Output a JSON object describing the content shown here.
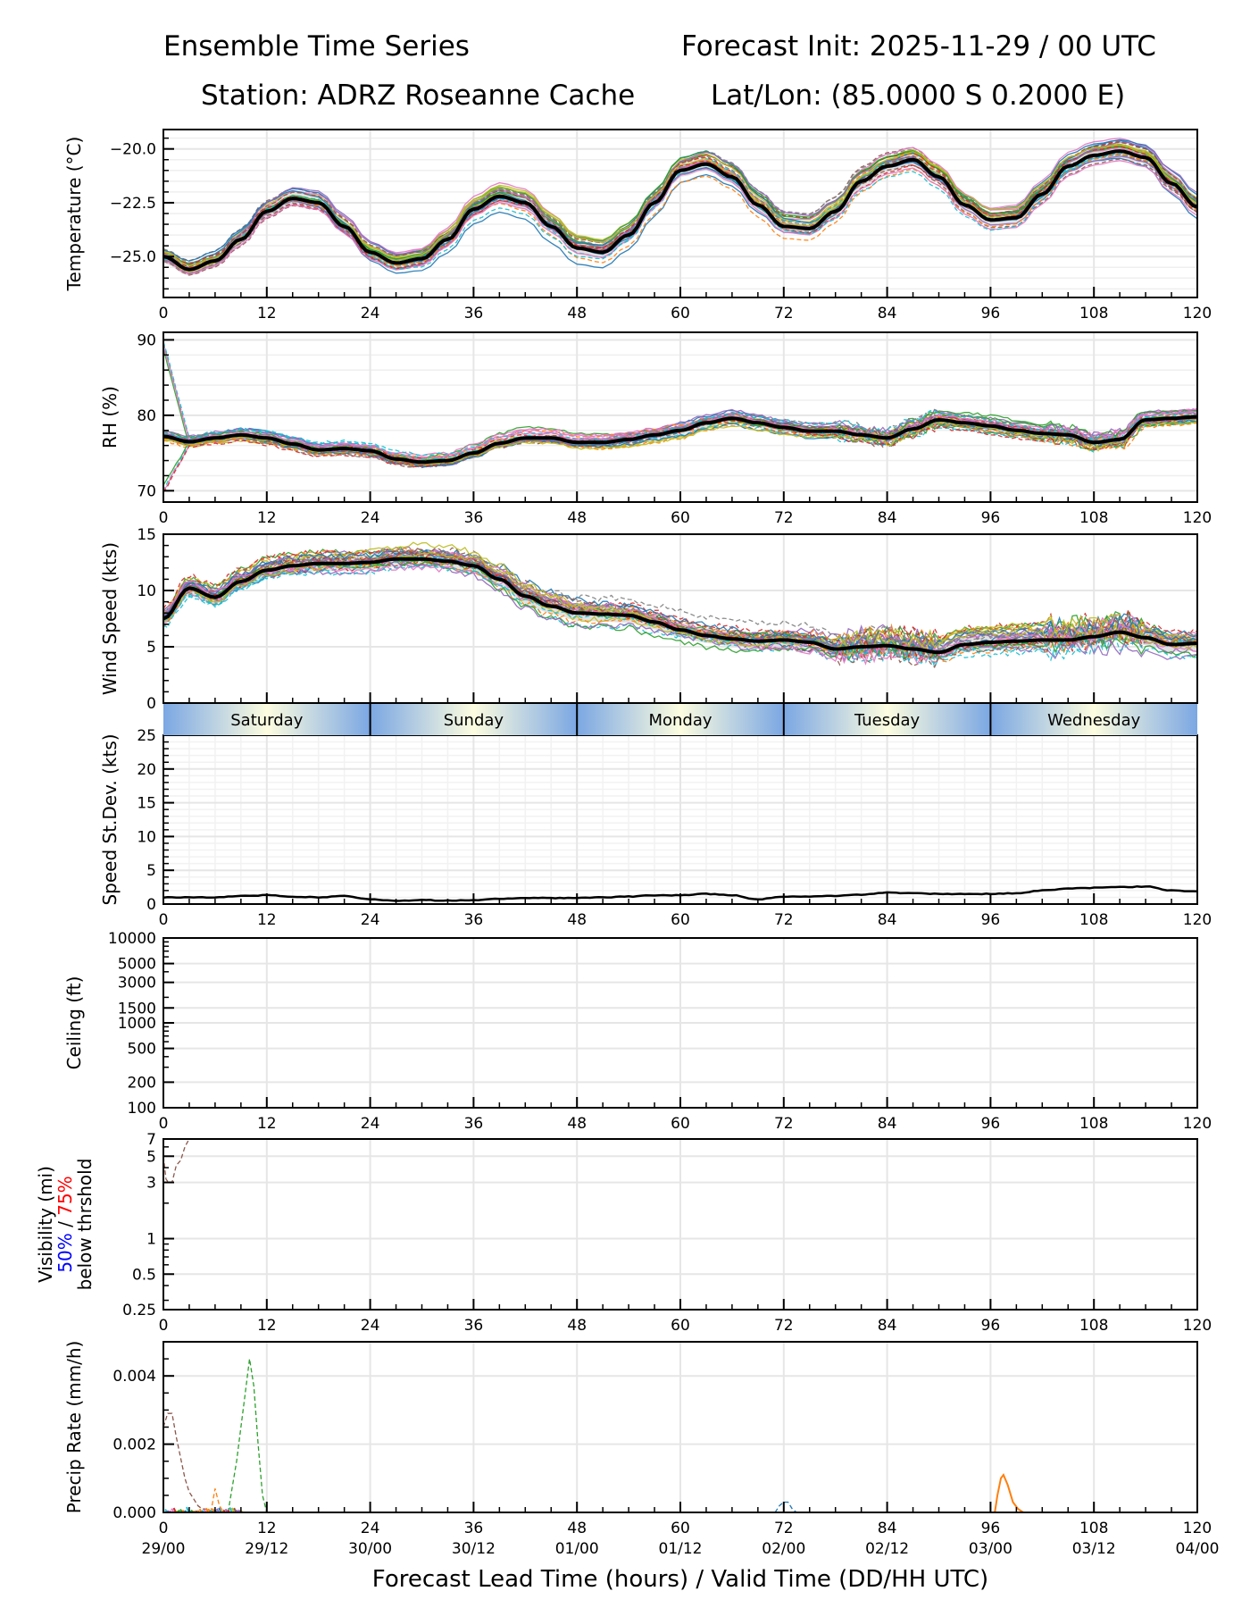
{
  "header": {
    "title_left": "Ensemble Time Series",
    "title_right": "Forecast Init: 2025-11-29 / 00 UTC",
    "station": "Station: ADRZ Roseanne Cache",
    "latlon": "Lat/Lon: (85.0000 S 0.2000 E)"
  },
  "chart_data": [
    {
      "type": "line",
      "id": "temperature",
      "ylabel": "Temperature (°C)",
      "ylim": [
        -26.9,
        -19.1
      ],
      "yticks": [
        -25.0,
        -22.5,
        -20.0
      ],
      "ytick_labels": [
        "−25.0",
        "−22.5",
        "−20.0"
      ],
      "x": [
        0,
        3,
        6,
        9,
        12,
        15,
        18,
        21,
        24,
        27,
        30,
        33,
        36,
        39,
        42,
        45,
        48,
        51,
        54,
        57,
        60,
        63,
        66,
        69,
        72,
        75,
        78,
        81,
        84,
        87,
        90,
        93,
        96,
        99,
        102,
        105,
        108,
        111,
        114,
        117,
        120
      ],
      "ensemble_mean": [
        -25.0,
        -25.6,
        -25.2,
        -24.2,
        -22.9,
        -22.3,
        -22.5,
        -23.6,
        -24.8,
        -25.3,
        -25.1,
        -24.2,
        -22.8,
        -22.2,
        -22.5,
        -23.6,
        -24.6,
        -24.8,
        -24.0,
        -22.5,
        -21.0,
        -20.7,
        -21.3,
        -22.6,
        -23.6,
        -23.7,
        -22.9,
        -21.5,
        -20.8,
        -20.5,
        -21.3,
        -22.6,
        -23.3,
        -23.2,
        -22.1,
        -20.8,
        -20.3,
        -20.1,
        -20.4,
        -21.6,
        -22.7
      ],
      "spread": 0.5,
      "grid": true
    },
    {
      "type": "line",
      "id": "rh",
      "ylabel": "RH (%)",
      "ylim": [
        68.5,
        91
      ],
      "yticks": [
        70,
        80,
        90
      ],
      "ytick_labels": [
        "70",
        "80",
        "90"
      ],
      "x": [
        0,
        3,
        6,
        9,
        12,
        15,
        18,
        21,
        24,
        27,
        30,
        33,
        36,
        39,
        42,
        45,
        48,
        51,
        54,
        57,
        60,
        63,
        66,
        69,
        72,
        75,
        78,
        81,
        84,
        87,
        90,
        93,
        96,
        99,
        102,
        105,
        108,
        111,
        114,
        117,
        120
      ],
      "ensemble_mean": [
        77.2,
        76.5,
        77.0,
        77.4,
        77.0,
        76.2,
        75.4,
        75.6,
        75.3,
        74.2,
        73.8,
        74.0,
        75.0,
        76.3,
        77.0,
        77.0,
        76.4,
        76.4,
        76.8,
        77.4,
        78.0,
        79.0,
        79.6,
        79.0,
        78.4,
        77.9,
        77.9,
        77.4,
        77.0,
        78.2,
        79.4,
        79.0,
        78.6,
        78.0,
        77.6,
        77.4,
        76.4,
        76.8,
        79.4,
        79.6,
        79.8
      ],
      "spread": 1.0,
      "grid": true
    },
    {
      "type": "line",
      "id": "wind_speed",
      "ylabel": "Wind Speed (kts)",
      "ylim": [
        0,
        15
      ],
      "yticks": [
        0,
        5,
        10,
        15
      ],
      "ytick_labels": [
        "0",
        "5",
        "10",
        "15"
      ],
      "x": [
        0,
        3,
        6,
        9,
        12,
        15,
        18,
        21,
        24,
        27,
        30,
        33,
        36,
        39,
        42,
        45,
        48,
        51,
        54,
        57,
        60,
        63,
        66,
        69,
        72,
        75,
        78,
        81,
        84,
        87,
        90,
        93,
        96,
        99,
        102,
        105,
        108,
        111,
        114,
        117,
        120
      ],
      "ensemble_mean": [
        7.5,
        10.2,
        9.4,
        10.8,
        11.8,
        12.2,
        12.4,
        12.4,
        12.5,
        12.8,
        12.8,
        12.6,
        12.2,
        11.0,
        9.5,
        8.6,
        8.0,
        7.9,
        7.8,
        7.2,
        6.5,
        6.0,
        5.7,
        5.5,
        5.6,
        5.4,
        4.8,
        5.0,
        5.1,
        4.8,
        4.5,
        5.2,
        5.4,
        5.5,
        5.6,
        5.6,
        5.9,
        6.3,
        5.8,
        5.2,
        5.3
      ],
      "spread": 1.1,
      "grid": true
    },
    {
      "type": "line",
      "id": "speed_stdev",
      "ylabel": "Speed St.Dev. (kts)",
      "ylim": [
        0,
        25
      ],
      "yticks": [
        0,
        5,
        10,
        15,
        20,
        25
      ],
      "ytick_labels": [
        "0",
        "5",
        "10",
        "15",
        "20",
        "25"
      ],
      "x": [
        0,
        3,
        6,
        9,
        12,
        15,
        18,
        21,
        24,
        27,
        30,
        33,
        36,
        39,
        42,
        45,
        48,
        51,
        54,
        57,
        60,
        63,
        66,
        69,
        72,
        75,
        78,
        81,
        84,
        87,
        90,
        93,
        96,
        99,
        102,
        105,
        108,
        111,
        114,
        117,
        120
      ],
      "values": [
        1.0,
        1.0,
        1.0,
        1.2,
        1.3,
        1.1,
        1.0,
        1.2,
        0.7,
        0.5,
        0.6,
        0.5,
        0.6,
        0.8,
        0.9,
        0.9,
        0.9,
        1.0,
        1.1,
        1.3,
        1.3,
        1.5,
        1.3,
        0.7,
        1.1,
        1.1,
        1.2,
        1.4,
        1.7,
        1.6,
        1.5,
        1.5,
        1.5,
        1.6,
        2.0,
        2.3,
        2.4,
        2.5,
        2.6,
        2.0,
        1.9
      ],
      "grid": true
    },
    {
      "type": "line",
      "id": "ceiling",
      "ylabel": "Ceiling (ft)",
      "yscale": "log",
      "ylim": [
        100,
        10000
      ],
      "yticks": [
        100,
        200,
        500,
        1000,
        1500,
        3000,
        5000,
        10000
      ],
      "ytick_labels": [
        "100",
        "200",
        "500",
        "1000",
        "1500",
        "3000",
        "5000",
        "10000"
      ],
      "series": [],
      "grid": true
    },
    {
      "type": "line",
      "id": "visibility",
      "ylabel_parts": [
        "Visibility (mi)",
        "50%",
        " / ",
        "75%",
        "below thrshold"
      ],
      "yscale": "log",
      "ylim": [
        0.25,
        7
      ],
      "yticks": [
        0.25,
        0.5,
        1,
        3,
        5,
        7
      ],
      "ytick_labels": [
        "0.25",
        "0.5",
        "1",
        "3",
        "5",
        "7"
      ],
      "series": [
        {
          "name": "member-brown",
          "x": [
            0,
            0.3,
            0.6,
            1.0,
            1.5,
            2.0,
            2.5,
            3.0
          ],
          "values": [
            5.0,
            3.2,
            3.0,
            3.0,
            4.2,
            4.6,
            6.0,
            7.0
          ]
        }
      ],
      "grid": true
    },
    {
      "type": "line",
      "id": "precip_rate",
      "ylabel": "Precip Rate (mm/h)",
      "xlabel": "Forecast Lead Time (hours) / Valid Time (DD/HH UTC)",
      "ylim": [
        0,
        0.005
      ],
      "yticks": [
        0.0,
        0.002,
        0.004
      ],
      "ytick_labels": [
        "0.000",
        "0.002",
        "0.004"
      ],
      "series": [
        {
          "name": "member-brown",
          "x": [
            0,
            0.5,
            1,
            1.5,
            2,
            2.5,
            3,
            3.5,
            4,
            4.5,
            5,
            6
          ],
          "values": [
            0.0025,
            0.0029,
            0.0029,
            0.0022,
            0.0016,
            0.001,
            0.0006,
            0.0004,
            0.0002,
            0.0001,
            0.0001,
            0.0
          ]
        },
        {
          "name": "member-orange",
          "x": [
            5.5,
            6.0,
            6.5,
            7.0
          ],
          "values": [
            0.0,
            0.0007,
            0.0002,
            0.0
          ]
        },
        {
          "name": "member-green",
          "x": [
            7.5,
            8.5,
            9.5,
            10.0,
            10.5,
            11.0,
            11.5,
            12.0
          ],
          "values": [
            0.0,
            0.0015,
            0.0035,
            0.0045,
            0.0037,
            0.002,
            0.0005,
            0.0
          ]
        },
        {
          "name": "member-blue",
          "x": [
            71,
            71.5,
            72,
            72.5,
            73,
            73.5
          ],
          "values": [
            0.0,
            0.0002,
            0.0003,
            0.0003,
            0.0001,
            0.0
          ]
        },
        {
          "name": "member-orange-2",
          "x": [
            96.5,
            96.8,
            97.2,
            97.5,
            98,
            98.6,
            99.2,
            99.8
          ],
          "values": [
            0.0,
            0.0005,
            0.001,
            0.0011,
            0.0008,
            0.0003,
            0.0001,
            0.0
          ]
        }
      ],
      "grid": true
    }
  ],
  "x_axis": {
    "xlim": [
      0,
      120
    ],
    "ticks": [
      0,
      12,
      24,
      36,
      48,
      60,
      72,
      84,
      96,
      108,
      120
    ],
    "tick_labels": [
      "0",
      "12",
      "24",
      "36",
      "48",
      "60",
      "72",
      "84",
      "96",
      "108",
      "120"
    ],
    "valid_time_labels": [
      "29/00",
      "29/12",
      "30/00",
      "30/12",
      "01/00",
      "01/12",
      "02/00",
      "02/12",
      "03/00",
      "03/12",
      "04/00"
    ]
  },
  "day_band": {
    "days": [
      "Saturday",
      "Sunday",
      "Monday",
      "Tuesday",
      "Wednesday"
    ],
    "colors": {
      "edge": "#7ba7e3",
      "center": "#fdfde0"
    }
  },
  "colors": {
    "mean": "#000000",
    "spread": "#d9d9d9",
    "grid": "#e6e6e6",
    "label_50": "#0000ff",
    "label_75": "#ff0000",
    "members": [
      "#1f77b4",
      "#ff7f0e",
      "#2ca02c",
      "#d62728",
      "#9467bd",
      "#8c564b",
      "#e377c2",
      "#7f7f7f",
      "#bcbd22",
      "#17becf"
    ]
  }
}
